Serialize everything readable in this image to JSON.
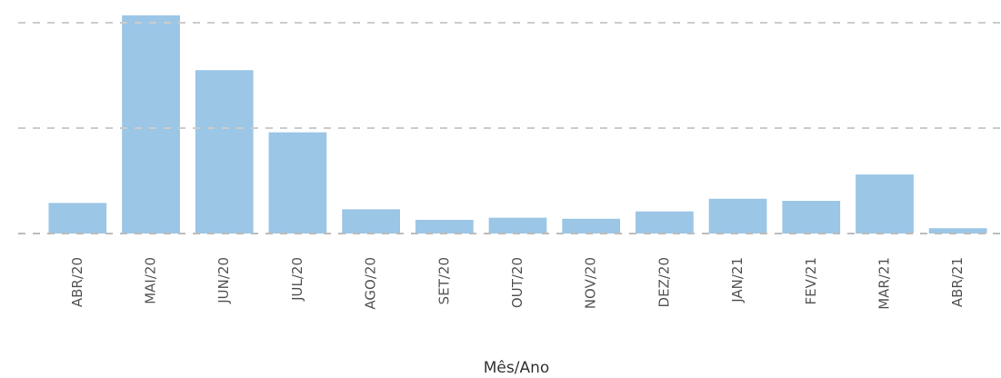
{
  "chart_data": {
    "type": "bar",
    "x_label": "Mês/Ano",
    "categories": [
      "ABR/20",
      "MAI/20",
      "JUN/20",
      "JUL/20",
      "AGO/20",
      "SET/20",
      "OUT/20",
      "NOV/20",
      "DEZ/20",
      "JAN/21",
      "FEV/21",
      "MAR/21",
      "ABR/21"
    ],
    "values": [
      0.29,
      2.07,
      1.55,
      0.96,
      0.23,
      0.13,
      0.15,
      0.14,
      0.21,
      0.33,
      0.31,
      0.56,
      0.05
    ],
    "color": "#9bc6e6",
    "ylim": [
      0,
      2.1
    ],
    "yticks": [
      0,
      1,
      2
    ],
    "grid": true
  }
}
